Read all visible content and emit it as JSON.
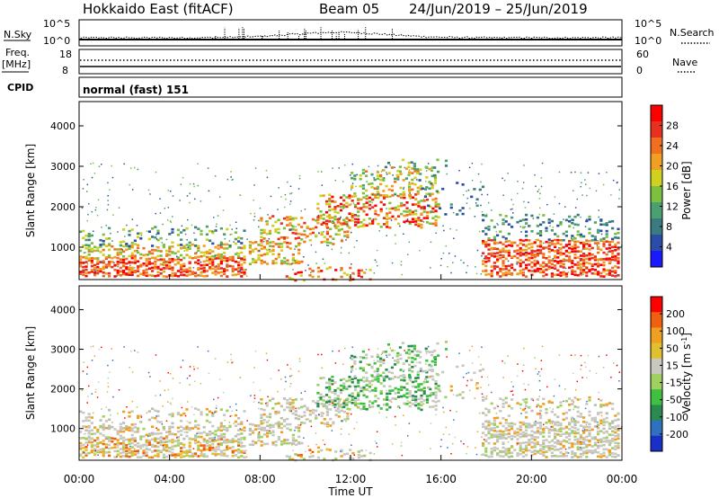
{
  "header": {
    "title": "Hokkaido East (fitACF)",
    "beam": "Beam 05",
    "date_range": "24/Jun/2019 – 25/Jun/2019"
  },
  "panels": {
    "nsky": {
      "label": "N.Sky",
      "left_ticks": [
        "10^5",
        "10^0"
      ],
      "right_ticks": [
        "10^5",
        "10^0"
      ],
      "right_label": "N.Search"
    },
    "freq": {
      "label_line1": "Freq.",
      "label_line2": "[MHz]",
      "left_ticks": [
        "18",
        "8"
      ],
      "right_ticks": [
        "60",
        "0"
      ],
      "right_label": "Nave"
    },
    "cpid": {
      "label": "CPID",
      "value": "normal (fast) 151"
    }
  },
  "chart_data": [
    {
      "type": "heatmap",
      "name": "power",
      "ylabel": "Slant Range [km]",
      "xlabel": "",
      "y_ticks": [
        1000,
        2000,
        3000,
        4000
      ],
      "ylim": [
        200,
        4600
      ],
      "x_tick_labels": [],
      "colorbar": {
        "label": "Power [dB]",
        "ticks": [
          4,
          8,
          12,
          16,
          20,
          24,
          28
        ],
        "range": [
          0,
          32
        ],
        "colors": [
          "#1a1aff",
          "#2a4ea8",
          "#3a7a80",
          "#4aa070",
          "#7cc040",
          "#d0d020",
          "#f0a020",
          "#f07020",
          "#e83020",
          "#ff0000"
        ]
      }
    },
    {
      "type": "heatmap",
      "name": "velocity",
      "ylabel": "Slant Range [km]",
      "xlabel": "Time UT",
      "y_ticks": [
        1000,
        2000,
        3000,
        4000
      ],
      "ylim": [
        200,
        4600
      ],
      "x_tick_labels": [
        "00:00",
        "04:00",
        "08:00",
        "12:00",
        "16:00",
        "20:00",
        "00:00"
      ],
      "colorbar": {
        "label": "Velocity [m s^-1]",
        "ticks": [
          "200",
          "100",
          "50",
          "15",
          "-15",
          "-50",
          "-100",
          "-200"
        ],
        "colors": [
          "#1830c8",
          "#3070c0",
          "#2a8a50",
          "#40c040",
          "#a0d060",
          "#c8c8c0",
          "#e0c030",
          "#f0a020",
          "#f06010",
          "#ff0000"
        ]
      }
    }
  ]
}
